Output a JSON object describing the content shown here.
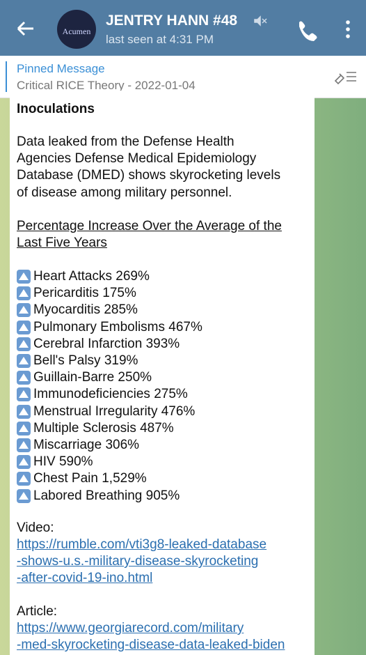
{
  "header": {
    "avatar_text": "Acumen",
    "name": "JENTRY HANN #48",
    "status": "last seen at 4:31 PM"
  },
  "pinned": {
    "label": "Pinned Message",
    "text": "Critical RICE Theory - 2022-01-04"
  },
  "message": {
    "top_line": "Inoculations",
    "paragraph": [
      "Data leaked from the Defense Health",
      "Agencies Defense Medical Epidemiology",
      "Database (DMED) shows skyrocketing levels",
      "of disease among military personnel."
    ],
    "heading": [
      "Percentage Increase Over the Average of the",
      "Last Five Years"
    ],
    "items": [
      "Heart Attacks 269%",
      "Pericarditis 175%",
      "Myocarditis 285%",
      "Pulmonary Embolisms 467%",
      "Cerebral Infarction 393%",
      "Bell's Palsy 319%",
      "Guillain-Barre 250%",
      "Immunodeficiencies 275%",
      "Menstrual Irregularity 476%",
      "Multiple Sclerosis 487%",
      "Miscarriage 306%",
      "HIV 590%",
      "Chest Pain 1,529%",
      "Labored Breathing 905%"
    ],
    "video_label": "Video:",
    "video_link": [
      "https://rumble.com/vti3g8-leaked-database",
      "-shows-u.s.-military-disease-skyrocketing",
      "-after-covid-19-ino.html"
    ],
    "article_label": "Article:",
    "article_link": [
      "https://www.georgiarecord.com/military",
      "-med-skyrocketing-disease-data-leaked-biden"
    ]
  }
}
